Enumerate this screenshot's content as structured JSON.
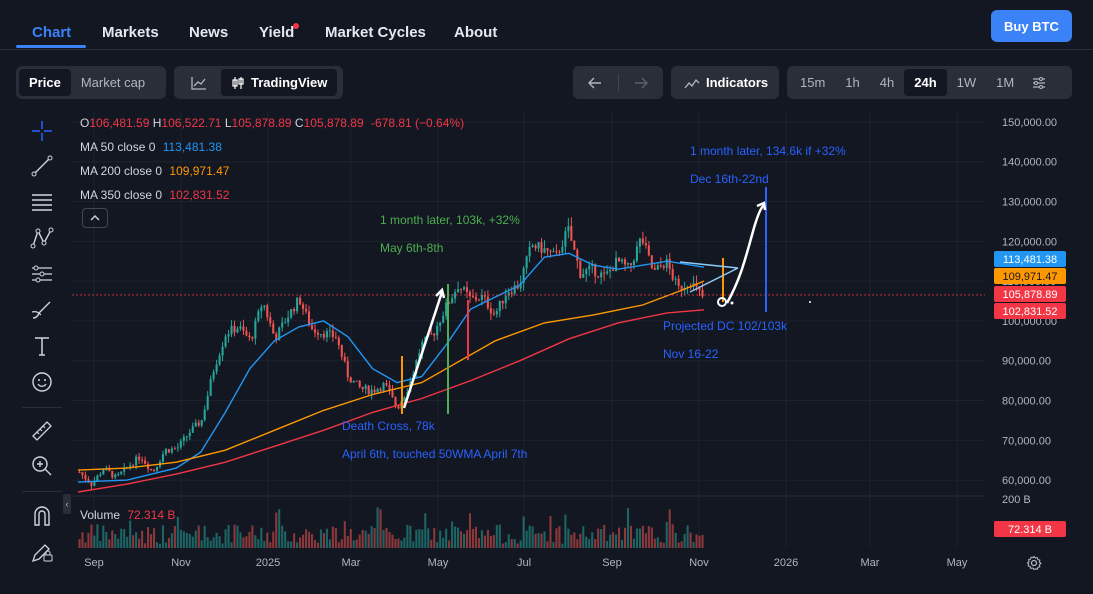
{
  "nav": {
    "tabs": [
      {
        "label": "Chart",
        "active": true
      },
      {
        "label": "Markets"
      },
      {
        "label": "News"
      },
      {
        "label": "Yield",
        "badge": true
      },
      {
        "label": "Market Cycles"
      },
      {
        "label": "About"
      }
    ],
    "buy_label": "Buy BTC"
  },
  "toolbar": {
    "price_label": "Price",
    "marketcap_label": "Market cap",
    "tradingview_label": "TradingView",
    "indicators_label": "Indicators",
    "intervals": [
      "15m",
      "1h",
      "4h",
      "24h",
      "1W",
      "1M"
    ],
    "active_interval": "24h"
  },
  "legend": {
    "o_key": "O",
    "o_val": "106,481.59",
    "h_key": "H",
    "h_val": "106,522.71",
    "l_key": "L",
    "l_val": "105,878.89",
    "c_key": "C",
    "c_val": "105,878.89",
    "change": "-678.81 (−0.64%)",
    "ma50_label": "MA 50 close 0",
    "ma50_val": "113,481.38",
    "ma200_label": "MA 200 close 0",
    "ma200_val": "109,971.47",
    "ma350_label": "MA 350 close 0",
    "ma350_val": "102,831.52",
    "volume_label": "Volume",
    "volume_val": "72.314 B"
  },
  "colors": {
    "up": "#26a69a",
    "down": "#ef5350",
    "ma50": "#2196f3",
    "ma200": "#ff9800",
    "ma350": "#f23645",
    "annotation_blue": "#2962ff",
    "annotation_green": "#4caf50"
  },
  "chart_data": {
    "type": "line",
    "y_axis_ticks": [
      "150,000.00",
      "140,000.00",
      "130,000.00",
      "120,000.00",
      "110,000.00",
      "100,000.00",
      "90,000.00",
      "80,000.00",
      "70,000.00",
      "60,000.00"
    ],
    "ylim": [
      56000,
      153000
    ],
    "x_axis_ticks": [
      "Sep",
      "Nov",
      "2025",
      "Mar",
      "May",
      "Jul",
      "Sep",
      "Nov",
      "2026",
      "Mar",
      "May"
    ],
    "volume_axis_tick": "200 B",
    "price_tags": [
      {
        "value": 113481.38,
        "label": "113,481.38",
        "color": "#2196f3"
      },
      {
        "value": 109971.47,
        "label": "109,971.47",
        "color": "#ff9800"
      },
      {
        "value": 105878.89,
        "label": "105,878.89",
        "color": "#f23645"
      },
      {
        "value": 102831.52,
        "label": "102,831.52",
        "color": "#f23645"
      }
    ],
    "volume_tag": "72.314 B",
    "price_series": [
      {
        "x": 0,
        "y": 62000
      },
      {
        "x": 1,
        "y": 59000
      },
      {
        "x": 2,
        "y": 63000
      },
      {
        "x": 3,
        "y": 60500
      },
      {
        "x": 4,
        "y": 63500
      },
      {
        "x": 5,
        "y": 66000
      },
      {
        "x": 6,
        "y": 62000
      },
      {
        "x": 7,
        "y": 67500
      },
      {
        "x": 8,
        "y": 68000
      },
      {
        "x": 9,
        "y": 72000
      },
      {
        "x": 10,
        "y": 75000
      },
      {
        "x": 11,
        "y": 88000
      },
      {
        "x": 12,
        "y": 97000
      },
      {
        "x": 13,
        "y": 98500
      },
      {
        "x": 14,
        "y": 95000
      },
      {
        "x": 15,
        "y": 105000
      },
      {
        "x": 16,
        "y": 95500
      },
      {
        "x": 17,
        "y": 101000
      },
      {
        "x": 18,
        "y": 105500
      },
      {
        "x": 19,
        "y": 98000
      },
      {
        "x": 20,
        "y": 97000
      },
      {
        "x": 21,
        "y": 96000
      },
      {
        "x": 22,
        "y": 86000
      },
      {
        "x": 23,
        "y": 83000
      },
      {
        "x": 24,
        "y": 82500
      },
      {
        "x": 25,
        "y": 84000
      },
      {
        "x": 26,
        "y": 78000
      },
      {
        "x": 27,
        "y": 84000
      },
      {
        "x": 28,
        "y": 94000
      },
      {
        "x": 29,
        "y": 97000
      },
      {
        "x": 30,
        "y": 103500
      },
      {
        "x": 31,
        "y": 109000
      },
      {
        "x": 32,
        "y": 105500
      },
      {
        "x": 33,
        "y": 106000
      },
      {
        "x": 34,
        "y": 101500
      },
      {
        "x": 35,
        "y": 107500
      },
      {
        "x": 36,
        "y": 109000
      },
      {
        "x": 37,
        "y": 119000
      },
      {
        "x": 38,
        "y": 118000
      },
      {
        "x": 39,
        "y": 116000
      },
      {
        "x": 40,
        "y": 123000
      },
      {
        "x": 41,
        "y": 112000
      },
      {
        "x": 42,
        "y": 113000
      },
      {
        "x": 43,
        "y": 111000
      },
      {
        "x": 44,
        "y": 115000
      },
      {
        "x": 45,
        "y": 113000
      },
      {
        "x": 46,
        "y": 121000
      },
      {
        "x": 47,
        "y": 112000
      },
      {
        "x": 48,
        "y": 115000
      },
      {
        "x": 49,
        "y": 108000
      },
      {
        "x": 50,
        "y": 110000
      },
      {
        "x": 51,
        "y": 106000
      }
    ],
    "ma50_series": [
      {
        "x": 0,
        "y": 59500
      },
      {
        "x": 4,
        "y": 60000
      },
      {
        "x": 8,
        "y": 63000
      },
      {
        "x": 10,
        "y": 67000
      },
      {
        "x": 12,
        "y": 77000
      },
      {
        "x": 14,
        "y": 88000
      },
      {
        "x": 16,
        "y": 95000
      },
      {
        "x": 18,
        "y": 98500
      },
      {
        "x": 20,
        "y": 100000
      },
      {
        "x": 22,
        "y": 96000
      },
      {
        "x": 24,
        "y": 88000
      },
      {
        "x": 26,
        "y": 84500
      },
      {
        "x": 28,
        "y": 86000
      },
      {
        "x": 30,
        "y": 94000
      },
      {
        "x": 32,
        "y": 103000
      },
      {
        "x": 34,
        "y": 106000
      },
      {
        "x": 36,
        "y": 109000
      },
      {
        "x": 38,
        "y": 116000
      },
      {
        "x": 40,
        "y": 117000
      },
      {
        "x": 42,
        "y": 114000
      },
      {
        "x": 44,
        "y": 113000
      },
      {
        "x": 46,
        "y": 114000
      },
      {
        "x": 48,
        "y": 115000
      },
      {
        "x": 51,
        "y": 113500
      }
    ],
    "ma200_series": [
      {
        "x": 0,
        "y": 62500
      },
      {
        "x": 4,
        "y": 63000
      },
      {
        "x": 8,
        "y": 64500
      },
      {
        "x": 12,
        "y": 67500
      },
      {
        "x": 16,
        "y": 72500
      },
      {
        "x": 20,
        "y": 77500
      },
      {
        "x": 24,
        "y": 81500
      },
      {
        "x": 28,
        "y": 84500
      },
      {
        "x": 30,
        "y": 88000
      },
      {
        "x": 34,
        "y": 95000
      },
      {
        "x": 38,
        "y": 99500
      },
      {
        "x": 42,
        "y": 101500
      },
      {
        "x": 46,
        "y": 104000
      },
      {
        "x": 49,
        "y": 107500
      },
      {
        "x": 51,
        "y": 110000
      }
    ],
    "ma350_series": [
      {
        "x": 0,
        "y": 57000
      },
      {
        "x": 4,
        "y": 59000
      },
      {
        "x": 8,
        "y": 61500
      },
      {
        "x": 12,
        "y": 64500
      },
      {
        "x": 16,
        "y": 68500
      },
      {
        "x": 20,
        "y": 72500
      },
      {
        "x": 24,
        "y": 77000
      },
      {
        "x": 28,
        "y": 80500
      },
      {
        "x": 32,
        "y": 85000
      },
      {
        "x": 36,
        "y": 90000
      },
      {
        "x": 40,
        "y": 95500
      },
      {
        "x": 44,
        "y": 99500
      },
      {
        "x": 48,
        "y": 102000
      },
      {
        "x": 51,
        "y": 102800
      }
    ],
    "annotations": [
      {
        "text": "1 month later, 103k, +32%",
        "color": "#4caf50"
      },
      {
        "text": "May 6th-8th",
        "color": "#4caf50"
      },
      {
        "text": "1 month later, 134.6k if +32%",
        "color": "#2962ff"
      },
      {
        "text": "Dec 16th-22nd",
        "color": "#2962ff"
      },
      {
        "text": "Projected DC 102/103k",
        "color": "#2962ff"
      },
      {
        "text": "Nov 16-22",
        "color": "#2962ff"
      },
      {
        "text": "Death Cross, 78k",
        "color": "#2962ff"
      },
      {
        "text": "April 6th, touched 50WMA April 7th",
        "color": "#2962ff"
      }
    ]
  }
}
